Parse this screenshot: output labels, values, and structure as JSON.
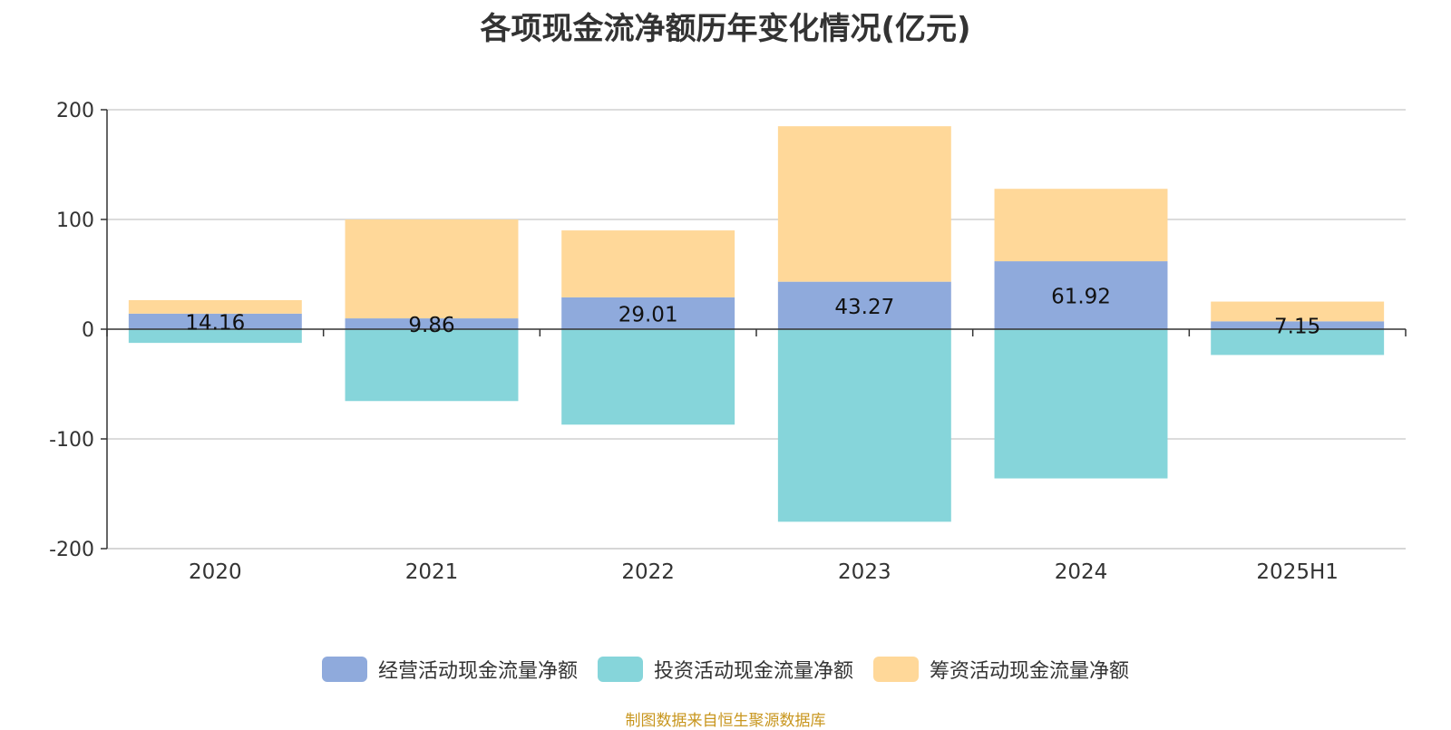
{
  "chart_data": {
    "type": "bar",
    "stacked": true,
    "title": "各项现金流净额历年变化情况(亿元)",
    "categories": [
      "2020",
      "2021",
      "2022",
      "2023",
      "2024",
      "2025H1"
    ],
    "ylim": [
      -200,
      200
    ],
    "yticks": [
      200,
      100,
      0,
      -100,
      -200
    ],
    "grid": true,
    "legend_position": "bottom-center",
    "series": [
      {
        "name": "经营活动现金流量净额",
        "color": "#8faadc",
        "show_labels": true,
        "values": [
          14.16,
          9.86,
          29.01,
          43.27,
          61.92,
          7.15
        ]
      },
      {
        "name": "投资活动现金流量净额",
        "color": "#86d5da",
        "show_labels": false,
        "values": [
          -12.5,
          -65.5,
          -87.0,
          -175.5,
          -136.0,
          -23.5
        ]
      },
      {
        "name": "筹资活动现金流量净额",
        "color": "#ffd899",
        "show_labels": false,
        "values": [
          12.3,
          90.1,
          61.0,
          141.7,
          66.0,
          18.0
        ]
      }
    ],
    "data_labels": [
      "14.16",
      "9.86",
      "29.01",
      "43.27",
      "61.92",
      "7.15"
    ]
  },
  "source_text": "制图数据来自恒生聚源数据库",
  "source_color": "#c8961e"
}
